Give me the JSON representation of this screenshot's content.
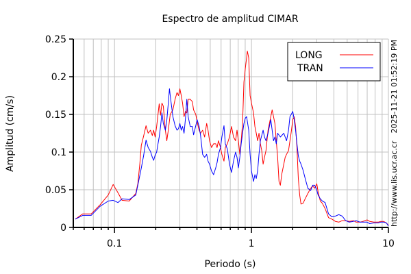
{
  "chart_data": {
    "type": "line",
    "title": "Espectro de amplitud CIMAR",
    "xlabel": "Periodo (s)",
    "ylabel": "Amplitud (cm/s)",
    "xscale": "log",
    "xlim": [
      0.05,
      10
    ],
    "ylim": [
      0,
      0.25
    ],
    "grid": true,
    "legend_position": "top-right",
    "x_ticks": [
      {
        "value": 0.1,
        "label": "0.1"
      },
      {
        "value": 1,
        "label": "1"
      },
      {
        "value": 10,
        "label": "10"
      }
    ],
    "y_ticks": [
      {
        "value": 0,
        "label": "0"
      },
      {
        "value": 0.05,
        "label": "0.05"
      },
      {
        "value": 0.1,
        "label": "0.1"
      },
      {
        "value": 0.15,
        "label": "0.15"
      },
      {
        "value": 0.2,
        "label": "0.2"
      },
      {
        "value": 0.25,
        "label": "0.25"
      }
    ],
    "series": [
      {
        "name": "LONG",
        "color": "#ff0000",
        "x": [
          0.0517,
          0.0587,
          0.0675,
          0.0784,
          0.09,
          0.0977,
          0.106,
          0.1135,
          0.128,
          0.143,
          0.148,
          0.153,
          0.157,
          0.163,
          0.17,
          0.176,
          0.183,
          0.189,
          0.193,
          0.198,
          0.203,
          0.207,
          0.212,
          0.217,
          0.222,
          0.227,
          0.235,
          0.241,
          0.247,
          0.255,
          0.267,
          0.277,
          0.286,
          0.293,
          0.3,
          0.307,
          0.314,
          0.322,
          0.33,
          0.337,
          0.345,
          0.357,
          0.37,
          0.378,
          0.392,
          0.401,
          0.415,
          0.425,
          0.44,
          0.455,
          0.471,
          0.482,
          0.494,
          0.511,
          0.529,
          0.548,
          0.561,
          0.574,
          0.594,
          0.608,
          0.63,
          0.644,
          0.667,
          0.691,
          0.715,
          0.74,
          0.766,
          0.784,
          0.803,
          0.822,
          0.841,
          0.861,
          0.881,
          0.902,
          0.922,
          0.933,
          0.955,
          0.977,
          1.0,
          1.035,
          1.059,
          1.084,
          1.109,
          1.135,
          1.162,
          1.189,
          1.216,
          1.245,
          1.276,
          1.321,
          1.384,
          1.416,
          1.449,
          1.483,
          1.517,
          1.552,
          1.589,
          1.626,
          1.663,
          1.722,
          1.762,
          1.803,
          1.866,
          1.91,
          1.954,
          2.004,
          2.051,
          2.099,
          2.148,
          2.198,
          2.249,
          2.301,
          2.382,
          2.466,
          2.582,
          2.704,
          2.799,
          2.897,
          3.0,
          3.069,
          3.184,
          3.296,
          3.451,
          3.656,
          3.873,
          4.102,
          4.345,
          4.603,
          4.876,
          5.176,
          5.546,
          5.808,
          6.223,
          6.516,
          6.982,
          7.311,
          7.834,
          8.414,
          8.81,
          9.226,
          9.661,
          10
        ],
        "y": [
          0.011,
          0.018,
          0.018,
          0.03,
          0.043,
          0.057,
          0.046,
          0.036,
          0.035,
          0.045,
          0.058,
          0.084,
          0.109,
          0.121,
          0.135,
          0.125,
          0.129,
          0.122,
          0.129,
          0.12,
          0.134,
          0.147,
          0.164,
          0.149,
          0.165,
          0.161,
          0.129,
          0.115,
          0.129,
          0.15,
          0.156,
          0.17,
          0.179,
          0.175,
          0.184,
          0.175,
          0.165,
          0.147,
          0.154,
          0.152,
          0.17,
          0.17,
          0.167,
          0.156,
          0.15,
          0.14,
          0.129,
          0.125,
          0.129,
          0.12,
          0.138,
          0.129,
          0.115,
          0.106,
          0.111,
          0.111,
          0.106,
          0.115,
          0.106,
          0.097,
          0.088,
          0.106,
          0.111,
          0.12,
          0.134,
          0.12,
          0.115,
          0.129,
          0.115,
          0.097,
          0.115,
          0.138,
          0.193,
          0.211,
          0.225,
          0.234,
          0.225,
          0.175,
          0.165,
          0.152,
          0.134,
          0.125,
          0.115,
          0.125,
          0.111,
          0.102,
          0.084,
          0.093,
          0.102,
          0.129,
          0.147,
          0.156,
          0.147,
          0.138,
          0.115,
          0.093,
          0.061,
          0.056,
          0.07,
          0.084,
          0.093,
          0.097,
          0.102,
          0.115,
          0.127,
          0.143,
          0.147,
          0.134,
          0.106,
          0.065,
          0.043,
          0.031,
          0.032,
          0.038,
          0.045,
          0.052,
          0.055,
          0.052,
          0.058,
          0.047,
          0.035,
          0.032,
          0.025,
          0.013,
          0.011,
          0.008,
          0.007,
          0.009,
          0.009,
          0.008,
          0.009,
          0.007,
          0.007,
          0.008,
          0.01,
          0.008,
          0.007,
          0.007,
          0.008,
          0.008,
          0.006,
          0.003
        ]
      },
      {
        "name": "TRAN",
        "color": "#0000ff",
        "x": [
          0.0517,
          0.0587,
          0.0675,
          0.0784,
          0.09,
          0.0977,
          0.106,
          0.1135,
          0.128,
          0.143,
          0.148,
          0.153,
          0.157,
          0.163,
          0.17,
          0.176,
          0.183,
          0.189,
          0.193,
          0.198,
          0.203,
          0.207,
          0.212,
          0.217,
          0.222,
          0.227,
          0.235,
          0.241,
          0.247,
          0.252,
          0.255,
          0.267,
          0.277,
          0.286,
          0.293,
          0.3,
          0.307,
          0.314,
          0.322,
          0.33,
          0.337,
          0.345,
          0.357,
          0.37,
          0.378,
          0.392,
          0.401,
          0.415,
          0.425,
          0.44,
          0.455,
          0.471,
          0.482,
          0.494,
          0.511,
          0.529,
          0.548,
          0.561,
          0.574,
          0.594,
          0.608,
          0.63,
          0.644,
          0.667,
          0.691,
          0.715,
          0.74,
          0.766,
          0.784,
          0.803,
          0.822,
          0.841,
          0.861,
          0.881,
          0.902,
          0.922,
          0.955,
          0.977,
          1.0,
          1.035,
          1.059,
          1.084,
          1.109,
          1.135,
          1.162,
          1.189,
          1.216,
          1.245,
          1.276,
          1.321,
          1.384,
          1.416,
          1.449,
          1.483,
          1.517,
          1.552,
          1.626,
          1.722,
          1.803,
          1.866,
          1.91,
          1.954,
          2.004,
          2.051,
          2.099,
          2.148,
          2.198,
          2.249,
          2.301,
          2.382,
          2.466,
          2.582,
          2.704,
          2.799,
          2.897,
          3.0,
          3.069,
          3.184,
          3.296,
          3.451,
          3.656,
          3.873,
          4.102,
          4.345,
          4.603,
          4.876,
          5.176,
          5.546,
          5.808,
          6.223,
          6.516,
          6.982,
          7.311,
          7.834,
          8.414,
          8.81,
          9.226,
          9.661,
          10
        ],
        "y": [
          0.011,
          0.016,
          0.016,
          0.028,
          0.035,
          0.036,
          0.033,
          0.038,
          0.037,
          0.043,
          0.056,
          0.069,
          0.079,
          0.095,
          0.116,
          0.106,
          0.101,
          0.093,
          0.089,
          0.096,
          0.1,
          0.109,
          0.12,
          0.134,
          0.152,
          0.138,
          0.129,
          0.142,
          0.165,
          0.184,
          0.175,
          0.147,
          0.135,
          0.129,
          0.131,
          0.138,
          0.129,
          0.134,
          0.125,
          0.145,
          0.17,
          0.147,
          0.134,
          0.134,
          0.123,
          0.135,
          0.143,
          0.134,
          0.122,
          0.097,
          0.093,
          0.097,
          0.088,
          0.084,
          0.075,
          0.07,
          0.079,
          0.086,
          0.097,
          0.106,
          0.12,
          0.135,
          0.111,
          0.104,
          0.084,
          0.073,
          0.088,
          0.1,
          0.093,
          0.079,
          0.093,
          0.111,
          0.125,
          0.138,
          0.145,
          0.147,
          0.129,
          0.097,
          0.075,
          0.061,
          0.07,
          0.065,
          0.075,
          0.097,
          0.115,
          0.122,
          0.129,
          0.12,
          0.115,
          0.125,
          0.143,
          0.129,
          0.115,
          0.12,
          0.111,
          0.125,
          0.12,
          0.125,
          0.115,
          0.129,
          0.147,
          0.15,
          0.154,
          0.143,
          0.129,
          0.111,
          0.095,
          0.088,
          0.084,
          0.076,
          0.065,
          0.052,
          0.049,
          0.056,
          0.056,
          0.049,
          0.043,
          0.038,
          0.035,
          0.033,
          0.018,
          0.014,
          0.015,
          0.017,
          0.015,
          0.009,
          0.007,
          0.008,
          0.009,
          0.007,
          0.007,
          0.007,
          0.005,
          0.006,
          0.006,
          0.007,
          0.007,
          0.006,
          0.002
        ]
      }
    ],
    "side_text": {
      "timestamp": "2025-11-21 01:52:19 PM",
      "url": "http://www.lis.ucr.ac.cr"
    }
  }
}
